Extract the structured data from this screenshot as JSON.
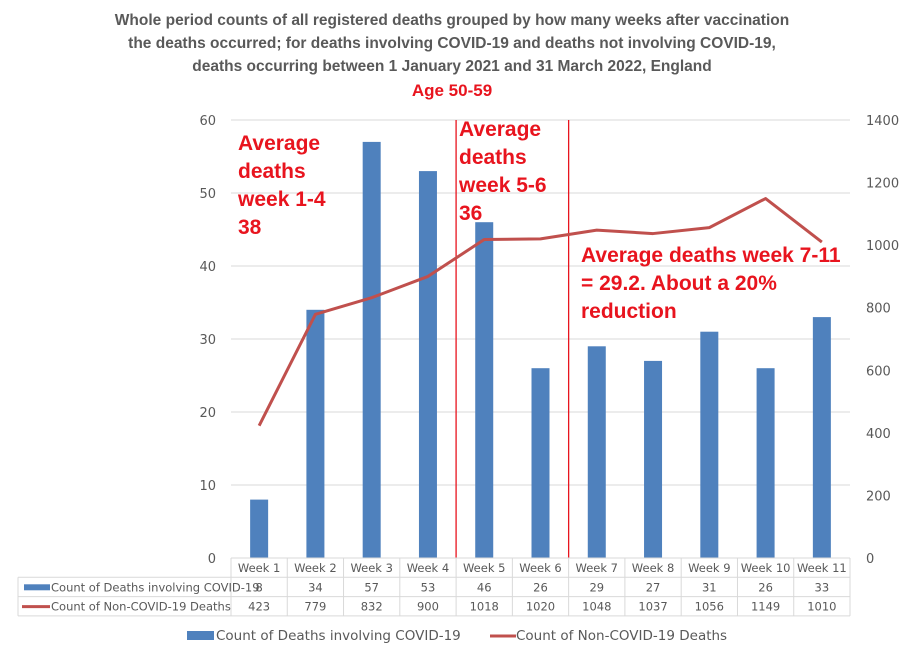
{
  "chart_data": {
    "type": "bar+line",
    "title": [
      "Whole period counts of all registered deaths grouped by how many weeks after vaccination",
      "the deaths occurred; for deaths involving COVID-19 and deaths not involving COVID-19,",
      "deaths occurring between 1 January 2021 and 31 March 2022, England"
    ],
    "subtitle": "Age 50-59",
    "categories": [
      "Week 1",
      "Week 2",
      "Week 3",
      "Week 4",
      "Week 5",
      "Week 6",
      "Week 7",
      "Week 8",
      "Week 9",
      "Week 10",
      "Week 11"
    ],
    "series": [
      {
        "name": "Count of Deaths involving COVID-19",
        "type": "bar",
        "axis": "left",
        "color": "#4f81bd",
        "values": [
          8,
          34,
          57,
          53,
          46,
          26,
          29,
          27,
          31,
          26,
          33
        ]
      },
      {
        "name": "Count of Non-COVID-19 Deaths",
        "type": "line",
        "axis": "right",
        "color": "#c0504d",
        "values": [
          423,
          779,
          832,
          900,
          1018,
          1020,
          1048,
          1037,
          1056,
          1149,
          1010
        ]
      }
    ],
    "y_left": {
      "range": [
        0,
        60
      ],
      "ticks": [
        0,
        10,
        20,
        30,
        40,
        50,
        60
      ]
    },
    "y_right": {
      "range": [
        0,
        1400
      ],
      "ticks": [
        0,
        200,
        400,
        600,
        800,
        1000,
        1200,
        1400
      ]
    },
    "grid": true,
    "data_table": true,
    "legend_position": "bottom",
    "dividers": [
      {
        "between": [
          "Week 4",
          "Week 5"
        ],
        "color": "#e8141e"
      },
      {
        "between": [
          "Week 6",
          "Week 7"
        ],
        "color": "#e8141e"
      }
    ],
    "annotations": [
      {
        "lines": [
          "Average",
          "deaths",
          "week 1-4",
          "38"
        ]
      },
      {
        "lines": [
          "Average",
          "deaths",
          "week 5-6",
          "36"
        ]
      },
      {
        "lines": [
          "Average deaths week 7-11",
          "= 29.2.  About a 20%",
          "reduction"
        ]
      }
    ]
  }
}
